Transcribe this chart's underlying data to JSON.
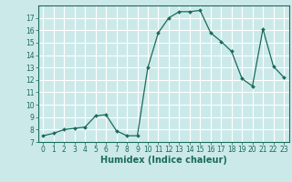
{
  "x": [
    0,
    1,
    2,
    3,
    4,
    5,
    6,
    7,
    8,
    9,
    10,
    11,
    12,
    13,
    14,
    15,
    16,
    17,
    18,
    19,
    20,
    21,
    22,
    23
  ],
  "y": [
    7.5,
    7.7,
    8.0,
    8.1,
    8.2,
    9.1,
    9.2,
    7.9,
    7.5,
    7.5,
    13.0,
    15.8,
    17.0,
    17.5,
    17.5,
    17.6,
    15.8,
    15.1,
    14.3,
    12.1,
    11.5,
    16.1,
    13.1,
    12.2
  ],
  "line_color": "#1a6b5a",
  "marker": "D",
  "marker_size": 2.0,
  "bg_color": "#cce9e9",
  "grid_color": "#ffffff",
  "xlabel": "Humidex (Indice chaleur)",
  "xlim": [
    -0.5,
    23.5
  ],
  "ylim": [
    7,
    18.0
  ],
  "yticks": [
    7,
    8,
    9,
    10,
    11,
    12,
    13,
    14,
    15,
    16,
    17
  ],
  "xticks": [
    0,
    1,
    2,
    3,
    4,
    5,
    6,
    7,
    8,
    9,
    10,
    11,
    12,
    13,
    14,
    15,
    16,
    17,
    18,
    19,
    20,
    21,
    22,
    23
  ],
  "tick_fontsize": 5.5,
  "xlabel_fontsize": 7.0,
  "tick_color": "#1a6b5a",
  "axis_color": "#1a6b5a",
  "linewidth": 0.9
}
